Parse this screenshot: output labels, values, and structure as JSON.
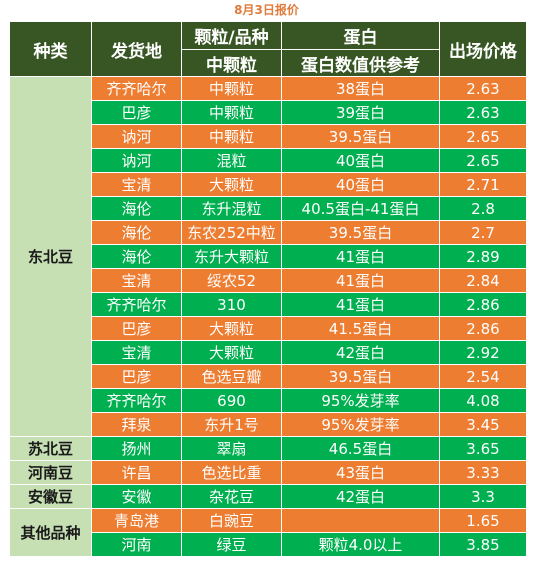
{
  "caption": "8月3日报价",
  "headers": {
    "category": "种类",
    "origin": "发货地",
    "grain_top": "颗粒/品种",
    "grain_sub": "中颗粒",
    "protein_top": "蛋白",
    "protein_sub": "蛋白数值供参考",
    "price": "出场价格"
  },
  "categories": [
    "东北豆",
    "苏北豆",
    "河南豆",
    "安徽豆",
    "其他品种"
  ],
  "rows": [
    {
      "origin": "齐齐哈尔",
      "grain": "中颗粒",
      "protein": "38蛋白",
      "price": "2.63",
      "color": "#ed7d31"
    },
    {
      "origin": "巴彦",
      "grain": "中颗粒",
      "protein": "39蛋白",
      "price": "2.63",
      "color": "#00b050"
    },
    {
      "origin": "讷河",
      "grain": "中颗粒",
      "protein": "39.5蛋白",
      "price": "2.65",
      "color": "#ed7d31"
    },
    {
      "origin": "讷河",
      "grain": "混粒",
      "protein": "40蛋白",
      "price": "2.65",
      "color": "#00b050"
    },
    {
      "origin": "宝清",
      "grain": "大颗粒",
      "protein": "40蛋白",
      "price": "2.71",
      "color": "#ed7d31"
    },
    {
      "origin": "海伦",
      "grain": "东升混粒",
      "protein": "40.5蛋白-41蛋白",
      "price": "2.8",
      "color": "#00b050"
    },
    {
      "origin": "海伦",
      "grain": "东农252中粒",
      "protein": "39.5蛋白",
      "price": "2.7",
      "color": "#ed7d31"
    },
    {
      "origin": "海伦",
      "grain": "东升大颗粒",
      "protein": "41蛋白",
      "price": "2.89",
      "color": "#00b050"
    },
    {
      "origin": "宝清",
      "grain": "绥农52",
      "protein": "41蛋白",
      "price": "2.84",
      "color": "#ed7d31"
    },
    {
      "origin": "齐齐哈尔",
      "grain": "310",
      "protein": "41蛋白",
      "price": "2.86",
      "color": "#00b050"
    },
    {
      "origin": "巴彦",
      "grain": "大颗粒",
      "protein": "41.5蛋白",
      "price": "2.86",
      "color": "#ed7d31"
    },
    {
      "origin": "宝清",
      "grain": "大颗粒",
      "protein": "42蛋白",
      "price": "2.92",
      "color": "#00b050"
    },
    {
      "origin": "巴彦",
      "grain": "色选豆瓣",
      "protein": "39.5蛋白",
      "price": "2.54",
      "color": "#ed7d31"
    },
    {
      "origin": "齐齐哈尔",
      "grain": "690",
      "protein": "95%发芽率",
      "price": "4.08",
      "color": "#00b050"
    },
    {
      "origin": "拜泉",
      "grain": "东升1号",
      "protein": "95%发芽率",
      "price": "3.45",
      "color": "#ed7d31"
    },
    {
      "origin": "扬州",
      "grain": "翠扇",
      "protein": "46.5蛋白",
      "price": "3.65",
      "color": "#00b050"
    },
    {
      "origin": "许昌",
      "grain": "色选比重",
      "protein": "43蛋白",
      "price": "3.33",
      "color": "#ed7d31"
    },
    {
      "origin": "安徽",
      "grain": "杂花豆",
      "protein": "42蛋白",
      "price": "3.3",
      "color": "#00b050"
    },
    {
      "origin": "青岛港",
      "grain": "白豌豆",
      "protein": "",
      "price": "1.65",
      "color": "#ed7d31"
    },
    {
      "origin": "河南",
      "grain": "绿豆",
      "protein": "颗粒4.0以上",
      "price": "3.85",
      "color": "#00b050"
    }
  ]
}
